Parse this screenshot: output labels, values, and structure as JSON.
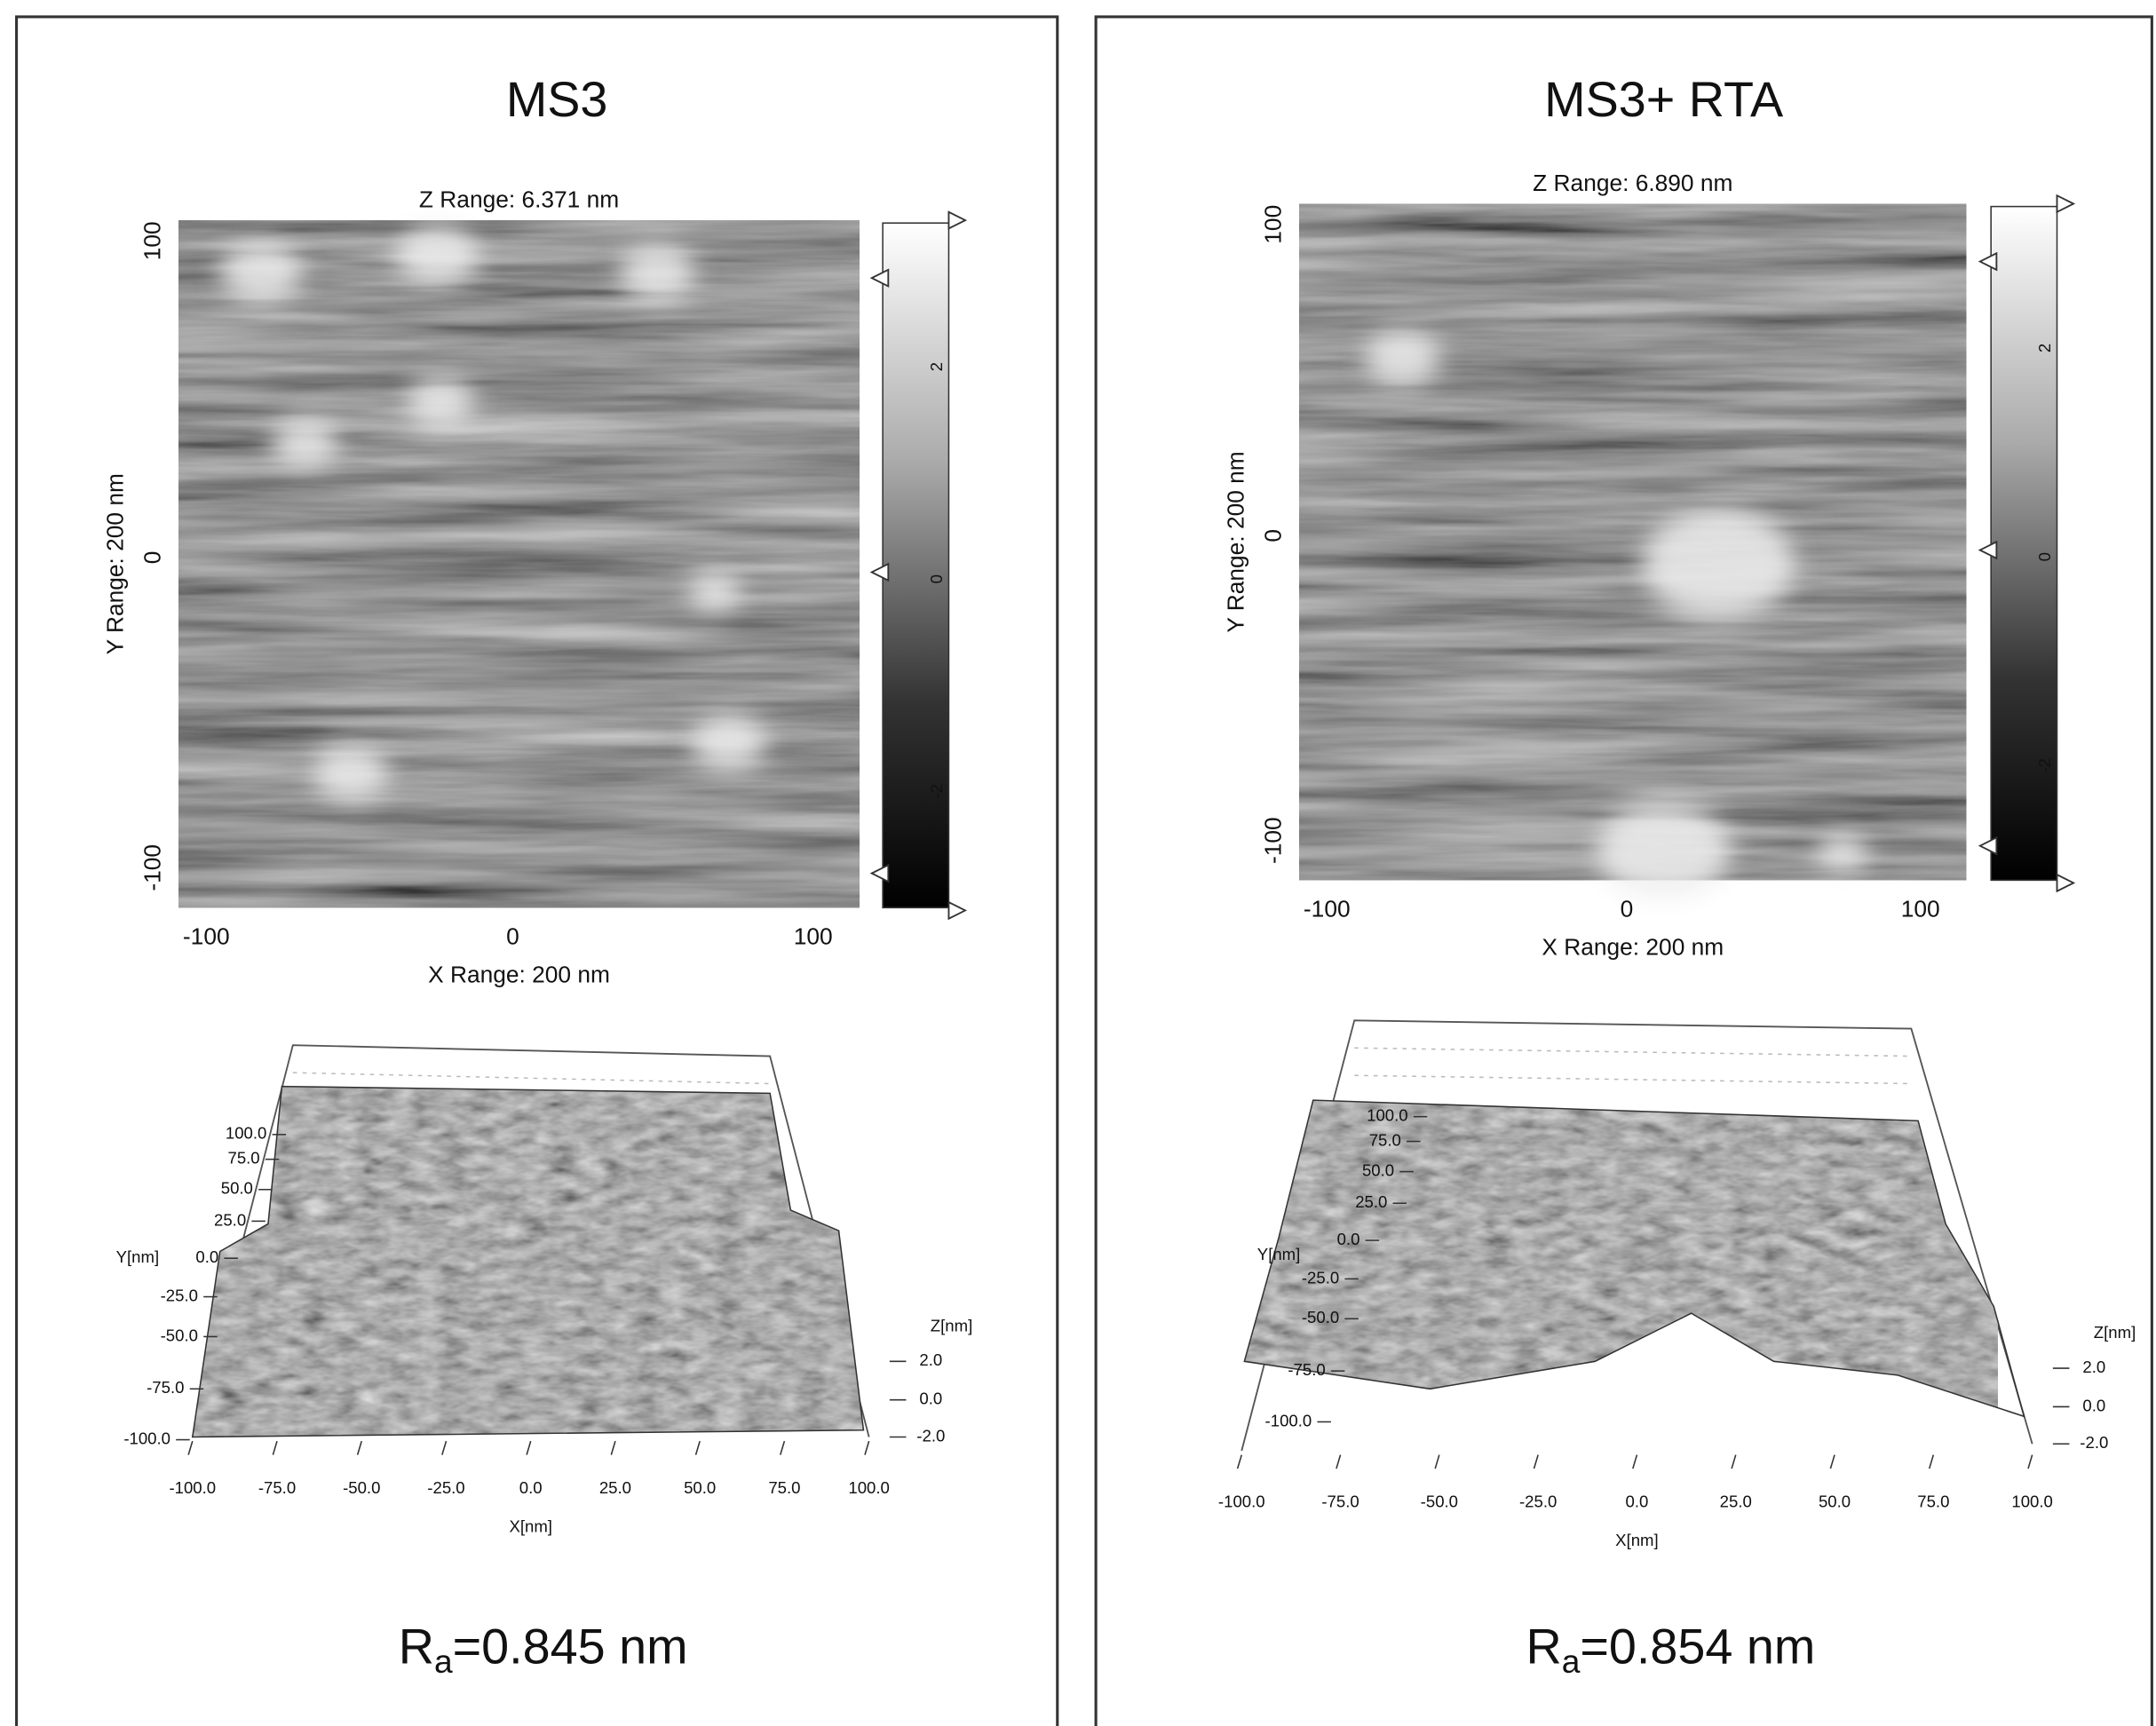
{
  "panels": [
    {
      "title": "MS3",
      "z_range": "Z Range: 6.371 nm",
      "y_range": "Y Range: 200 nm",
      "x_range": "X Range: 200 nm",
      "x_ticks": [
        "-100",
        "0",
        "100"
      ],
      "y_ticks": [
        "100",
        "0",
        "-100"
      ],
      "colorbar_ticks": [
        "2",
        "0",
        "-2"
      ],
      "surface": {
        "y_label": "Y[nm]",
        "y_ticks": [
          "100.0",
          "75.0",
          "50.0",
          "25.0",
          "0.0",
          "-25.0",
          "-50.0",
          "-75.0",
          "-100.0"
        ],
        "x_label": "X[nm]",
        "x_ticks": [
          "-100.0",
          "-75.0",
          "-50.0",
          "-25.0",
          "0.0",
          "25.0",
          "50.0",
          "75.0",
          "100.0"
        ],
        "z_label": "Z[nm]",
        "z_ticks": [
          "2.0",
          "0.0",
          "-2.0"
        ]
      },
      "roughness": {
        "symbol": "R",
        "subscript": "a",
        "value": "=0.845 nm"
      }
    },
    {
      "title": "MS3+ RTA",
      "z_range": "Z Range: 6.890 nm",
      "y_range": "Y Range: 200 nm",
      "x_range": "X Range: 200 nm",
      "x_ticks": [
        "-100",
        "0",
        "100"
      ],
      "y_ticks": [
        "100",
        "0",
        "-100"
      ],
      "colorbar_ticks": [
        "2",
        "0",
        "-2"
      ],
      "surface": {
        "y_label": "Y[nm]",
        "y_ticks": [
          "100.0",
          "75.0",
          "50.0",
          "25.0",
          "0.0",
          "-25.0",
          "-50.0",
          "-75.0",
          "-100.0"
        ],
        "x_label": "X[nm]",
        "x_ticks": [
          "-100.0",
          "-75.0",
          "-50.0",
          "-25.0",
          "0.0",
          "25.0",
          "50.0",
          "75.0",
          "100.0"
        ],
        "z_label": "Z[nm]",
        "z_ticks": [
          "2.0",
          "0.0",
          "-2.0"
        ]
      },
      "roughness": {
        "symbol": "R",
        "subscript": "a",
        "value": "=0.854 nm"
      }
    }
  ]
}
